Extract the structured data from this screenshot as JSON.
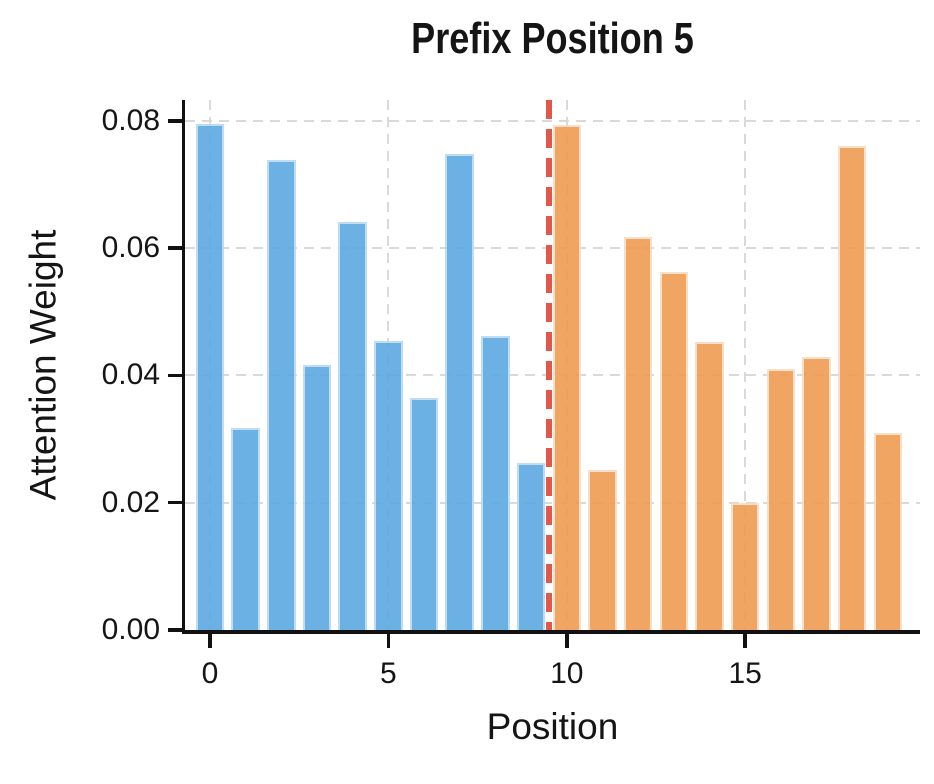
{
  "chart_data": {
    "type": "bar",
    "title": "Prefix Position 5",
    "xlabel": "Position",
    "ylabel": "Attention Weight",
    "x": [
      0,
      1,
      2,
      3,
      4,
      5,
      6,
      7,
      8,
      9,
      10,
      11,
      12,
      13,
      14,
      15,
      16,
      17,
      18,
      19
    ],
    "series": [
      {
        "name": "positions 0-9 (blue)",
        "color": "#5ca9e0",
        "edge_color": "#b8d9f2",
        "positions": [
          0,
          1,
          2,
          3,
          4,
          5,
          6,
          7,
          8,
          9
        ],
        "values": [
          0.0796,
          0.0317,
          0.0739,
          0.0416,
          0.0641,
          0.0454,
          0.0365,
          0.0748,
          0.0462,
          0.0263
        ]
      },
      {
        "name": "positions 10-19 (orange)",
        "color": "#ef9c52",
        "edge_color": "#f7ddc2",
        "positions": [
          10,
          11,
          12,
          13,
          14,
          15,
          16,
          17,
          18,
          19
        ],
        "values": [
          0.0794,
          0.0251,
          0.0617,
          0.0562,
          0.0453,
          0.02,
          0.041,
          0.0429,
          0.0761,
          0.0309
        ]
      }
    ],
    "divider": {
      "x": 9.5,
      "color": "#e0584c",
      "style": "dashed"
    },
    "bar_width": 0.8,
    "xticks": {
      "values": [
        0,
        5,
        10,
        15
      ],
      "labels": [
        "0",
        "5",
        "10",
        "15"
      ]
    },
    "yticks": {
      "values": [
        0,
        0.02,
        0.04,
        0.06,
        0.08
      ],
      "labels": [
        "0.00",
        "0.02",
        "0.04",
        "0.06",
        "0.08"
      ]
    },
    "xlim": [
      -0.7,
      19.9
    ],
    "ylim": [
      0,
      0.0833
    ],
    "grid": {
      "show": true,
      "style": "dashed",
      "color": "#d9d9d9"
    },
    "legend": null
  }
}
